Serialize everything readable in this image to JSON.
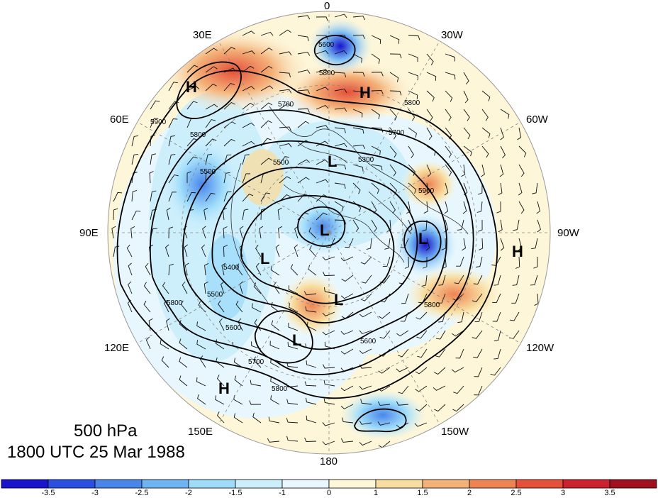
{
  "caption": {
    "level": "500 hPa",
    "datetime": "1800 UTC 25 Mar 1988"
  },
  "longitude_labels": [
    "0",
    "30W",
    "60W",
    "90W",
    "120W",
    "150W",
    "180",
    "150E",
    "120E",
    "90E",
    "60E",
    "30E"
  ],
  "pressure_centers": [
    "H",
    "H",
    "H",
    "H",
    "L",
    "L",
    "L",
    "L",
    "L",
    "L"
  ],
  "contour_labels": [
    "5600",
    "5800",
    "5700",
    "5300",
    "5500",
    "5800",
    "5900",
    "5800",
    "5500",
    "5400",
    "5500",
    "5600",
    "5800",
    "5900",
    "5700",
    "5800",
    "5600",
    "5700",
    "5800"
  ],
  "colorbar": {
    "labels": [
      "-3.5",
      "-3",
      "-2.5",
      "-2",
      "-1.5",
      "-1",
      "0",
      "1",
      "1.5",
      "2",
      "2.5",
      "3",
      "3.5"
    ],
    "colors": [
      "#1a14cc",
      "#2b4fe0",
      "#4a86ea",
      "#6fb3f2",
      "#9fdcfa",
      "#cdeffc",
      "#e8f7fd",
      "#fdf6d8",
      "#f8dda0",
      "#f4b27a",
      "#ee8454",
      "#e5503a",
      "#cc2230",
      "#a0101e"
    ]
  }
}
